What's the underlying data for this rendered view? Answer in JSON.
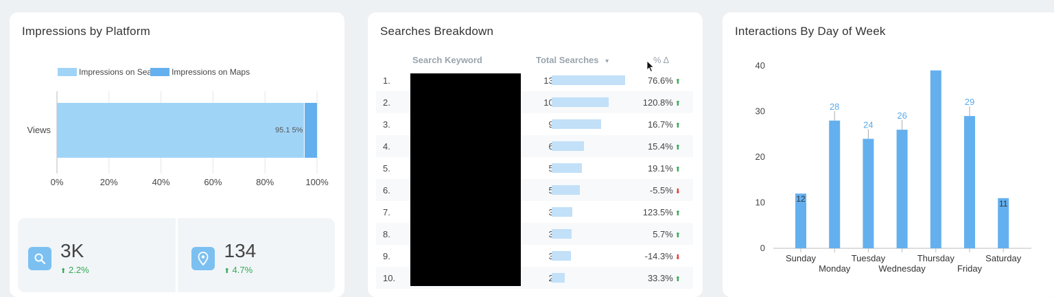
{
  "impressions": {
    "title": "Impressions by Platform",
    "legend": [
      {
        "label": "Impressions on Sear",
        "color": "#a0d4f7"
      },
      {
        "label": "Impressions on Maps",
        "color": "#64b0ef"
      }
    ],
    "chart_data": {
      "type": "bar",
      "orientation": "horizontal",
      "stacked": true,
      "categories": [
        "Views"
      ],
      "series": [
        {
          "name": "Impressions on Search",
          "values": [
            95.1
          ]
        },
        {
          "name": "Impressions on Maps",
          "values": [
            4.9
          ]
        }
      ],
      "data_label": "95.1 5%",
      "xticks": [
        "0%",
        "20%",
        "40%",
        "60%",
        "80%",
        "100%"
      ],
      "xlim": [
        0,
        100
      ]
    },
    "kpis": [
      {
        "icon": "search-icon",
        "value": "3K",
        "delta": "2.2%"
      },
      {
        "icon": "map-pin-icon",
        "value": "134",
        "delta": "4.7%"
      }
    ]
  },
  "searches": {
    "title": "Searches Breakdown",
    "headers": {
      "keyword": "Search Keyword",
      "total": "Total Searches",
      "sort_icon": "▾",
      "delta": "% Δ"
    },
    "rows": [
      {
        "idx": "1.",
        "total": "136",
        "value": 136,
        "pct": "76.6%",
        "dir": "up"
      },
      {
        "idx": "2.",
        "total": "106",
        "value": 106,
        "pct": "120.8%",
        "dir": "up"
      },
      {
        "idx": "3.",
        "total": "91",
        "value": 91,
        "pct": "16.7%",
        "dir": "up"
      },
      {
        "idx": "4.",
        "total": "60",
        "value": 60,
        "pct": "15.4%",
        "dir": "up"
      },
      {
        "idx": "5.",
        "total": "56",
        "value": 56,
        "pct": "19.1%",
        "dir": "up"
      },
      {
        "idx": "6.",
        "total": "52",
        "value": 52,
        "pct": "-5.5%",
        "dir": "down"
      },
      {
        "idx": "7.",
        "total": "38",
        "value": 38,
        "pct": "123.5%",
        "dir": "up"
      },
      {
        "idx": "8.",
        "total": "37",
        "value": 37,
        "pct": "5.7%",
        "dir": "up"
      },
      {
        "idx": "9.",
        "total": "36",
        "value": 36,
        "pct": "-14.3%",
        "dir": "down"
      },
      {
        "idx": "10.",
        "total": "24",
        "value": 24,
        "pct": "33.3%",
        "dir": "up"
      }
    ],
    "bar_max": 136
  },
  "interactions": {
    "title": "Interactions By Day of Week",
    "chart_data": {
      "type": "bar",
      "categories": [
        "Sunday",
        "Monday",
        "Tuesday",
        "Wednesday",
        "Thursday",
        "Friday",
        "Saturday"
      ],
      "values": [
        12,
        28,
        24,
        26,
        39,
        29,
        11
      ],
      "labels": [
        "12",
        "28",
        "24",
        "26",
        "",
        "29",
        "11"
      ],
      "yticks": [
        0,
        10,
        20,
        30,
        40
      ],
      "ylim": [
        0,
        40
      ],
      "color": "#64b0ef"
    }
  }
}
